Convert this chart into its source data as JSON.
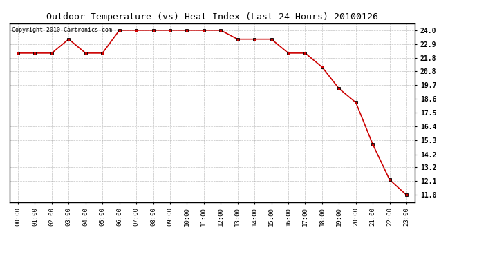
{
  "title": "Outdoor Temperature (vs) Heat Index (Last 24 Hours) 20100126",
  "copyright": "Copyright 2010 Cartronics.com",
  "x_labels": [
    "00:00",
    "01:00",
    "02:00",
    "03:00",
    "04:00",
    "05:00",
    "06:00",
    "07:00",
    "08:00",
    "09:00",
    "10:00",
    "11:00",
    "12:00",
    "13:00",
    "14:00",
    "15:00",
    "16:00",
    "17:00",
    "18:00",
    "19:00",
    "20:00",
    "21:00",
    "22:00",
    "23:00"
  ],
  "y_values": [
    22.2,
    22.2,
    22.2,
    23.3,
    22.2,
    22.2,
    24.0,
    24.0,
    24.0,
    24.0,
    24.0,
    24.0,
    24.0,
    23.3,
    23.3,
    23.3,
    22.2,
    22.2,
    21.1,
    19.4,
    18.3,
    15.0,
    12.2,
    11.0
  ],
  "line_color": "#cc0000",
  "marker_color": "#000000",
  "marker_style": "s",
  "marker_size": 3,
  "ylim_min": 10.45,
  "ylim_max": 24.55,
  "yticks": [
    11.0,
    12.1,
    13.2,
    14.2,
    15.3,
    16.4,
    17.5,
    18.6,
    19.7,
    20.8,
    21.8,
    22.9,
    24.0
  ],
  "bg_color": "#ffffff",
  "grid_color": "#aaaaaa",
  "title_fontsize": 9.5,
  "copyright_fontsize": 6.0,
  "tick_fontsize": 6.5,
  "ytick_fontsize": 7.0
}
